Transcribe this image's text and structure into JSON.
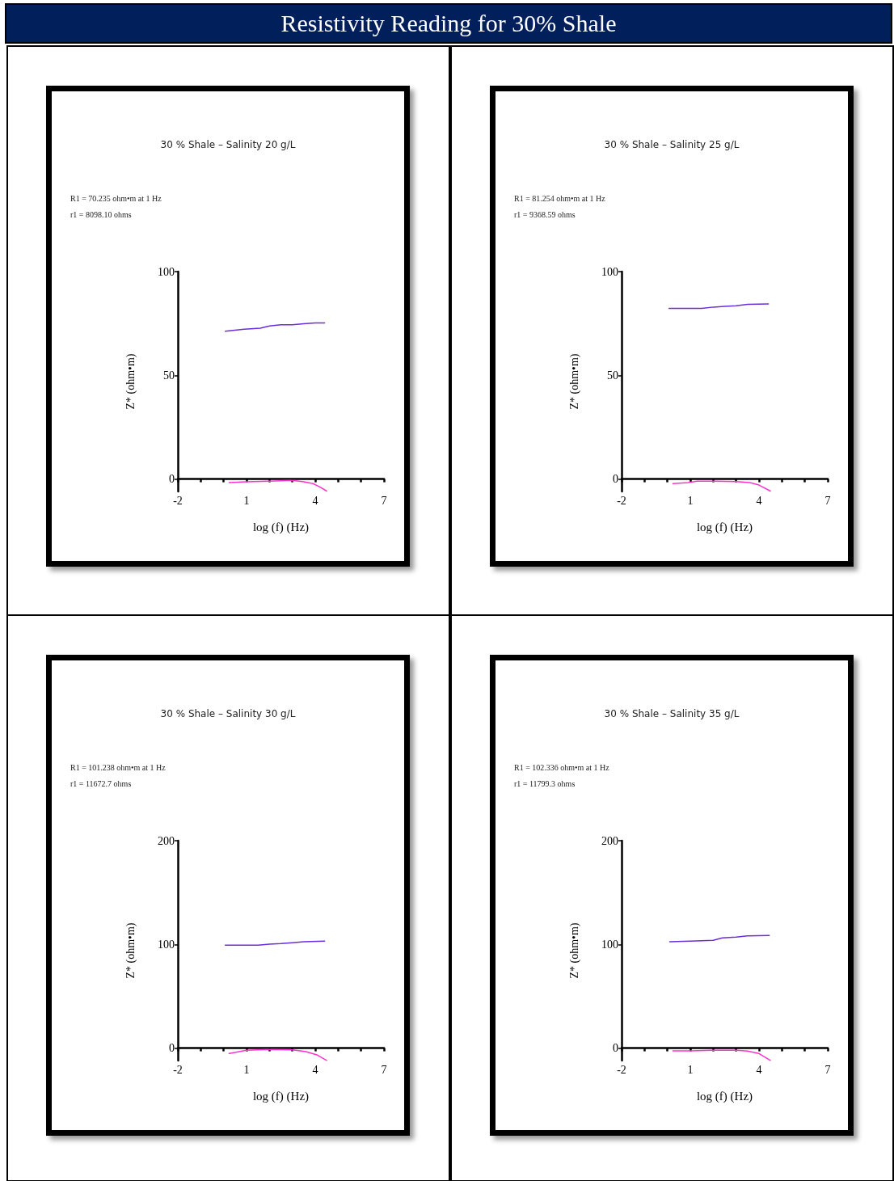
{
  "chart_data": [
    {
      "type": "other",
      "title": "Resistivity Reading for 30% Shale"
    },
    {
      "type": "line",
      "title": "30 % Shale – Salinity 20 g/L",
      "annotations": [
        "R1 = 70.235 ohm•m at 1 Hz",
        "r1 = 8098.10 ohms"
      ],
      "xlabel": "log (f) (Hz)",
      "ylabel": "Z* (ohm•m)",
      "xlim": [
        -2,
        7
      ],
      "xticks": [
        -2,
        {
          "value": -1,
          "label": null
        },
        {
          "value": 0,
          "label": null
        },
        1,
        {
          "value": 2,
          "label": null
        },
        {
          "value": 3,
          "label": null
        },
        4,
        {
          "value": 5,
          "label": null
        },
        {
          "value": 6,
          "label": null
        },
        7
      ],
      "ylim": [
        -6,
        100
      ],
      "yticks": [
        0,
        50,
        100
      ],
      "series": [
        {
          "color": "#6a2fd6",
          "x": [
            0.07,
            0.9,
            1.6,
            2.0,
            2.5,
            3.0,
            3.5,
            4.0,
            4.41
          ],
          "values": [
            71.3,
            72.2,
            72.7,
            73.8,
            74.4,
            74.4,
            74.9,
            75.3,
            75.3
          ]
        },
        {
          "color": "#ff33cc",
          "x": [
            0.24,
            1.0,
            2.0,
            3.0,
            3.5,
            3.9,
            4.2,
            4.5
          ],
          "values": [
            -1.7,
            -1.3,
            -1.0,
            -0.6,
            -1.3,
            -2.2,
            -3.8,
            -5.8
          ]
        }
      ]
    },
    {
      "type": "line",
      "title": "30 % Shale – Salinity 25 g/L",
      "annotations": [
        "R1 = 81.254 ohm•m at 1 Hz",
        "r1 = 9368.59 ohms"
      ],
      "xlabel": "log (f) (Hz)",
      "ylabel": "Z* (ohm•m)",
      "xlim": [
        -2,
        7
      ],
      "xticks": [
        -2,
        {
          "value": -1,
          "label": null
        },
        {
          "value": 0,
          "label": null
        },
        1,
        {
          "value": 2,
          "label": null
        },
        {
          "value": 3,
          "label": null
        },
        4,
        {
          "value": 5,
          "label": null
        },
        {
          "value": 6,
          "label": null
        },
        7
      ],
      "ylim": [
        -6,
        100
      ],
      "yticks": [
        0,
        50,
        100
      ],
      "series": [
        {
          "color": "#6a2fd6",
          "x": [
            0.07,
            1.5,
            2.0,
            2.5,
            3.0,
            3.5,
            4.41
          ],
          "values": [
            82.3,
            82.3,
            82.9,
            83.2,
            83.5,
            84.2,
            84.4
          ]
        },
        {
          "color": "#ff33cc",
          "x": [
            0.24,
            0.9,
            1.3,
            2.0,
            3.0,
            3.6,
            4.0,
            4.5
          ],
          "values": [
            -2.2,
            -1.7,
            -1.0,
            -1.0,
            -1.2,
            -1.7,
            -2.9,
            -5.8
          ]
        }
      ]
    },
    {
      "type": "line",
      "title": "30 % Shale – Salinity 30 g/L",
      "annotations": [
        "R1 = 101.238 ohm•m at 1 Hz",
        "r1 = 11672.7 ohms"
      ],
      "xlabel": "log (f) (Hz)",
      "ylabel": "Z* (ohm•m)",
      "xlim": [
        -2,
        7
      ],
      "xticks": [
        -2,
        {
          "value": -1,
          "label": null
        },
        {
          "value": 0,
          "label": null
        },
        1,
        {
          "value": 2,
          "label": null
        },
        {
          "value": 3,
          "label": null
        },
        4,
        {
          "value": 5,
          "label": null
        },
        {
          "value": 6,
          "label": null
        },
        7
      ],
      "ylim": [
        -12,
        200
      ],
      "yticks": [
        0,
        100,
        200
      ],
      "series": [
        {
          "color": "#6a2fd6",
          "x": [
            0.07,
            1.5,
            2.0,
            2.5,
            3.0,
            3.5,
            4.41
          ],
          "values": [
            99.2,
            99.2,
            100.3,
            100.8,
            101.6,
            102.6,
            103.1
          ]
        },
        {
          "color": "#ff33cc",
          "x": [
            0.24,
            1.0,
            2.0,
            3.0,
            3.6,
            4.1,
            4.5
          ],
          "values": [
            -5.2,
            -2.1,
            -1.3,
            -1.6,
            -3.4,
            -6.8,
            -11.9
          ]
        }
      ]
    },
    {
      "type": "line",
      "title": "30 % Shale – Salinity 35 g/L",
      "annotations": [
        "R1 = 102.336 ohm•m at 1 Hz",
        "r1 = 11799.3 ohms"
      ],
      "xlabel": "log (f) (Hz)",
      "ylabel": "Z* (ohm•m)",
      "xlim": [
        -2,
        7
      ],
      "xticks": [
        -2,
        {
          "value": -1,
          "label": null
        },
        {
          "value": 0,
          "label": null
        },
        1,
        {
          "value": 2,
          "label": null
        },
        {
          "value": 3,
          "label": null
        },
        4,
        {
          "value": 5,
          "label": null
        },
        {
          "value": 6,
          "label": null
        },
        7
      ],
      "ylim": [
        -12,
        200
      ],
      "yticks": [
        0,
        100,
        200
      ],
      "series": [
        {
          "color": "#6a2fd6",
          "x": [
            0.1,
            1.0,
            2.0,
            2.4,
            3.0,
            3.5,
            4.45
          ],
          "values": [
            102.6,
            103.1,
            103.9,
            106.2,
            107.0,
            108.3,
            108.6
          ]
        },
        {
          "color": "#ff33cc",
          "x": [
            0.24,
            1.0,
            2.0,
            3.0,
            3.5,
            4.0,
            4.5
          ],
          "values": [
            -2.6,
            -2.6,
            -2.1,
            -2.1,
            -2.9,
            -5.2,
            -11.9
          ]
        }
      ]
    }
  ]
}
